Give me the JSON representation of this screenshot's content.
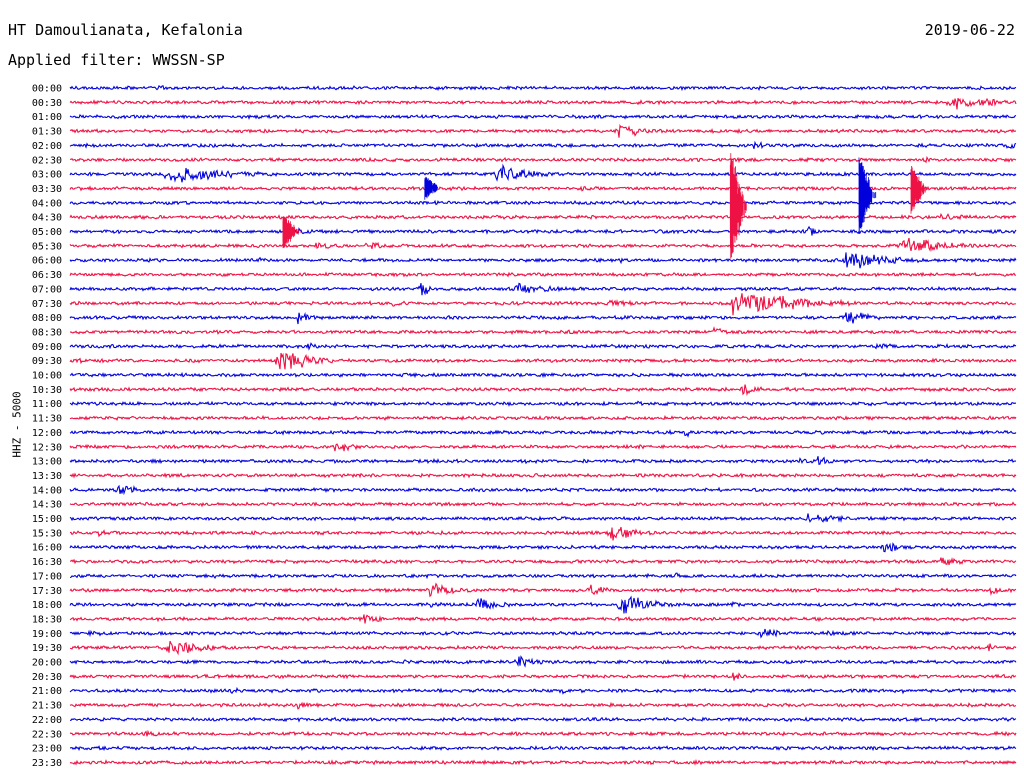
{
  "header": {
    "title": "HT Damoulianata, Kefalonia",
    "filter": "Applied filter: WWSSN-SP",
    "date": "2019-06-22",
    "channel": "HHZ - 5000"
  },
  "colors": {
    "blue": "#0000dd",
    "red": "#ee1144"
  },
  "chart_data": {
    "type": "line",
    "title": "HT Damoulianata, Kefalonia",
    "subtitle": "Applied filter: WWSSN-SP",
    "ylabel": "HHZ - 5000",
    "xlabel": "",
    "x_range_minutes": [
      0,
      30
    ],
    "grid": false,
    "legend": "none",
    "rows": [
      {
        "label": "00:00",
        "color": "blue",
        "events": [
          [
            9,
            0.6,
            4
          ],
          [
            30,
            0.5,
            2
          ],
          [
            61,
            0.3,
            2
          ]
        ]
      },
      {
        "label": "00:30",
        "color": "red",
        "events": [
          [
            60,
            0.4,
            3
          ],
          [
            93,
            1.2,
            12
          ],
          [
            97,
            0.5,
            6
          ]
        ]
      },
      {
        "label": "01:00",
        "color": "blue",
        "events": [
          [
            85,
            0.3,
            2
          ]
        ]
      },
      {
        "label": "01:30",
        "color": "red",
        "events": [
          [
            58,
            1.1,
            10
          ]
        ]
      },
      {
        "label": "02:00",
        "color": "blue",
        "events": [
          [
            30,
            0.3,
            2
          ],
          [
            52,
            0.4,
            3
          ],
          [
            72,
            0.6,
            6
          ],
          [
            99,
            0.8,
            4
          ]
        ]
      },
      {
        "label": "02:30",
        "color": "red",
        "events": [
          [
            22,
            0.3,
            3
          ],
          [
            90,
            0.5,
            4
          ]
        ]
      },
      {
        "label": "03:00",
        "color": "blue",
        "events": [
          [
            10,
            1.5,
            18
          ],
          [
            45,
            1.6,
            10
          ],
          [
            80,
            0.3,
            3
          ]
        ]
      },
      {
        "label": "03:30",
        "color": "red",
        "events": [
          [
            40,
            0.5,
            8
          ],
          [
            54,
            0.4,
            6
          ],
          [
            76,
            0.4,
            4
          ]
        ]
      },
      {
        "label": "04:00",
        "color": "blue",
        "events": [
          [
            60,
            0.3,
            2
          ]
        ]
      },
      {
        "label": "04:30",
        "color": "red",
        "events": [
          [
            22,
            0.5,
            8
          ],
          [
            55,
            0.5,
            4
          ],
          [
            92,
            0.6,
            8
          ]
        ]
      },
      {
        "label": "05:00",
        "color": "blue",
        "events": [
          [
            24,
            0.5,
            4
          ],
          [
            62,
            0.4,
            6
          ],
          [
            78,
            0.9,
            3
          ],
          [
            97,
            0.4,
            3
          ]
        ]
      },
      {
        "label": "05:30",
        "color": "red",
        "events": [
          [
            26,
            0.6,
            6
          ],
          [
            31,
            0.7,
            8
          ],
          [
            72,
            0.5,
            4
          ],
          [
            88,
            1.6,
            12
          ],
          [
            95,
            0.5,
            6
          ]
        ]
      },
      {
        "label": "06:00",
        "color": "blue",
        "events": [
          [
            20,
            0.4,
            4
          ],
          [
            58,
            0.5,
            4
          ],
          [
            82,
            1.8,
            12
          ]
        ]
      },
      {
        "label": "06:30",
        "color": "red",
        "events": [
          [
            20,
            0.3,
            4
          ],
          [
            55,
            0.3,
            3
          ]
        ]
      },
      {
        "label": "07:00",
        "color": "blue",
        "events": [
          [
            37,
            1.4,
            3
          ],
          [
            47,
            1.2,
            8
          ],
          [
            70,
            0.4,
            3
          ]
        ]
      },
      {
        "label": "07:30",
        "color": "red",
        "events": [
          [
            34,
            0.7,
            4
          ],
          [
            57,
            0.8,
            6
          ],
          [
            70,
            2.2,
            18
          ]
        ]
      },
      {
        "label": "08:00",
        "color": "blue",
        "events": [
          [
            24,
            0.9,
            5
          ],
          [
            40,
            0.4,
            4
          ],
          [
            82,
            1.5,
            6
          ]
        ]
      },
      {
        "label": "08:30",
        "color": "red",
        "events": [
          [
            15,
            0.4,
            6
          ],
          [
            68,
            0.8,
            4
          ]
        ]
      },
      {
        "label": "09:00",
        "color": "blue",
        "events": [
          [
            3,
            0.4,
            4
          ],
          [
            25,
            0.6,
            4
          ],
          [
            44,
            0.4,
            4
          ],
          [
            85,
            0.5,
            8
          ]
        ]
      },
      {
        "label": "09:30",
        "color": "red",
        "events": [
          [
            1,
            0.4,
            6
          ],
          [
            11,
            0.5,
            3
          ],
          [
            22,
            1.8,
            10
          ],
          [
            38,
            0.4,
            4
          ]
        ]
      },
      {
        "label": "10:00",
        "color": "blue",
        "events": [
          [
            31,
            0.3,
            3
          ],
          [
            60,
            0.3,
            3
          ]
        ]
      },
      {
        "label": "10:30",
        "color": "red",
        "events": [
          [
            13,
            0.4,
            3
          ],
          [
            71,
            0.9,
            5
          ]
        ]
      },
      {
        "label": "11:00",
        "color": "blue",
        "events": [
          [
            60,
            0.6,
            4
          ],
          [
            84,
            0.6,
            5
          ],
          [
            93,
            0.3,
            3
          ]
        ]
      },
      {
        "label": "11:30",
        "color": "red",
        "events": [
          [
            40,
            0.3,
            3
          ]
        ]
      },
      {
        "label": "12:00",
        "color": "blue",
        "events": [
          [
            55,
            0.3,
            3
          ],
          [
            65,
            0.6,
            6
          ],
          [
            99,
            0.3,
            3
          ]
        ]
      },
      {
        "label": "12:30",
        "color": "red",
        "events": [
          [
            28,
            1.0,
            6
          ],
          [
            60,
            0.4,
            4
          ]
        ]
      },
      {
        "label": "13:00",
        "color": "blue",
        "events": [
          [
            48,
            0.5,
            4
          ],
          [
            77,
            0.5,
            6
          ],
          [
            79,
            0.8,
            4
          ]
        ]
      },
      {
        "label": "13:30",
        "color": "red",
        "events": [
          [
            10,
            0.3,
            3
          ],
          [
            60,
            0.3,
            3
          ]
        ]
      },
      {
        "label": "14:00",
        "color": "blue",
        "events": [
          [
            5,
            1.2,
            5
          ],
          [
            75,
            0.3,
            3
          ]
        ]
      },
      {
        "label": "14:30",
        "color": "red",
        "events": [
          [
            1,
            0.4,
            3
          ]
        ]
      },
      {
        "label": "15:00",
        "color": "blue",
        "events": [
          [
            30,
            0.3,
            3
          ],
          [
            78,
            0.9,
            10
          ],
          [
            88,
            0.3,
            3
          ]
        ]
      },
      {
        "label": "15:30",
        "color": "red",
        "events": [
          [
            3,
            0.5,
            6
          ],
          [
            26,
            0.5,
            4
          ],
          [
            57,
            1.4,
            8
          ]
        ]
      },
      {
        "label": "16:00",
        "color": "blue",
        "events": [
          [
            16,
            0.3,
            3
          ],
          [
            66,
            0.4,
            3
          ],
          [
            86,
            0.9,
            6
          ]
        ]
      },
      {
        "label": "16:30",
        "color": "red",
        "events": [
          [
            10,
            0.4,
            4
          ],
          [
            36,
            0.3,
            3
          ],
          [
            92,
            0.9,
            6
          ]
        ]
      },
      {
        "label": "17:00",
        "color": "blue",
        "events": [
          [
            15,
            0.4,
            4
          ],
          [
            64,
            0.6,
            6
          ],
          [
            90,
            0.3,
            3
          ]
        ]
      },
      {
        "label": "17:30",
        "color": "red",
        "events": [
          [
            25,
            0.3,
            3
          ],
          [
            38,
            1.1,
            8
          ],
          [
            55,
            1.0,
            6
          ],
          [
            97,
            0.8,
            6
          ]
        ]
      },
      {
        "label": "18:00",
        "color": "blue",
        "events": [
          [
            38,
            0.5,
            6
          ],
          [
            43,
            1.0,
            8
          ],
          [
            58,
            1.8,
            10
          ],
          [
            70,
            0.4,
            5
          ]
        ]
      },
      {
        "label": "18:30",
        "color": "red",
        "events": [
          [
            31,
            0.9,
            6
          ],
          [
            47,
            0.3,
            3
          ]
        ]
      },
      {
        "label": "19:00",
        "color": "blue",
        "events": [
          [
            2,
            0.5,
            6
          ],
          [
            13,
            0.4,
            4
          ],
          [
            73,
            1.0,
            6
          ],
          [
            80,
            0.7,
            4
          ]
        ]
      },
      {
        "label": "19:30",
        "color": "red",
        "events": [
          [
            10,
            1.3,
            12
          ],
          [
            20,
            0.4,
            5
          ],
          [
            97,
            0.6,
            6
          ]
        ]
      },
      {
        "label": "20:00",
        "color": "blue",
        "events": [
          [
            35,
            0.6,
            6
          ],
          [
            47,
            1.1,
            8
          ],
          [
            67,
            0.4,
            3
          ]
        ]
      },
      {
        "label": "20:30",
        "color": "red",
        "events": [
          [
            64,
            0.4,
            3
          ],
          [
            70,
            0.8,
            4
          ]
        ]
      },
      {
        "label": "21:00",
        "color": "blue",
        "events": [
          [
            17,
            0.5,
            4
          ],
          [
            52,
            0.4,
            3
          ],
          [
            88,
            0.3,
            3
          ]
        ]
      },
      {
        "label": "21:30",
        "color": "red",
        "events": [
          [
            24,
            0.7,
            4
          ],
          [
            66,
            0.3,
            3
          ]
        ]
      },
      {
        "label": "22:00",
        "color": "blue",
        "events": [
          [
            2,
            0.3,
            3
          ],
          [
            55,
            0.4,
            3
          ],
          [
            78,
            0.3,
            4
          ]
        ]
      },
      {
        "label": "22:30",
        "color": "red",
        "events": [
          [
            8,
            0.5,
            5
          ],
          [
            57,
            0.4,
            4
          ],
          [
            75,
            0.4,
            3
          ]
        ]
      },
      {
        "label": "23:00",
        "color": "blue",
        "events": [
          [
            45,
            0.3,
            4
          ]
        ]
      },
      {
        "label": "23:30",
        "color": "red",
        "events": [
          [
            32,
            0.6,
            4
          ],
          [
            79,
            0.4,
            3
          ]
        ]
      }
    ],
    "large_events": [
      {
        "x": 69.8,
        "row_start": 4.2,
        "row_end": 12.3,
        "color": "red"
      },
      {
        "x": 83.4,
        "row_start": 4.5,
        "row_end": 10.4,
        "color": "blue"
      },
      {
        "x": 88.9,
        "row_start": 5.3,
        "row_end": 8.8,
        "color": "red"
      },
      {
        "x": 22.5,
        "row_start": 8.7,
        "row_end": 11.3,
        "color": "red"
      },
      {
        "x": 37.5,
        "row_start": 6.1,
        "row_end": 7.8,
        "color": "blue"
      }
    ]
  }
}
